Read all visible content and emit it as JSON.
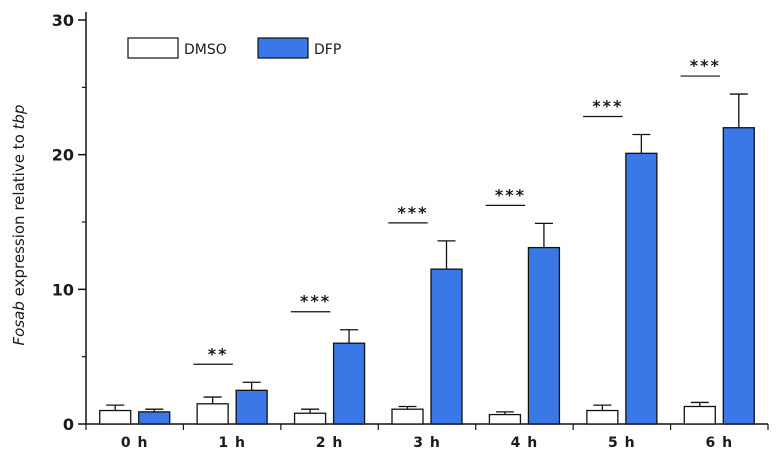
{
  "chart_data": {
    "type": "bar",
    "categories": [
      "0 h",
      "1 h",
      "2 h",
      "3 h",
      "4 h",
      "5 h",
      "6 h"
    ],
    "series": [
      {
        "name": "DMSO",
        "values": [
          1.0,
          1.5,
          0.8,
          1.1,
          0.7,
          1.0,
          1.3
        ],
        "errors": [
          0.4,
          0.5,
          0.3,
          0.2,
          0.2,
          0.4,
          0.3
        ],
        "color": "#ffffff"
      },
      {
        "name": "DFP",
        "values": [
          0.9,
          2.5,
          6.0,
          11.5,
          13.1,
          20.1,
          22.0
        ],
        "errors": [
          0.2,
          0.6,
          1.0,
          2.1,
          1.8,
          1.4,
          2.5
        ],
        "color": "#3b78e7"
      }
    ],
    "significance": [
      "",
      "**",
      "***",
      "***",
      "***",
      "***",
      "***"
    ],
    "ylabel_italic": "Fosab",
    "ylabel_middle": " expression relative to ",
    "ylabel_italic2": "tbp",
    "ylim": [
      0,
      30
    ],
    "yticks": [
      0,
      10,
      20,
      30
    ],
    "legend_position": "top-left",
    "grid": false
  }
}
